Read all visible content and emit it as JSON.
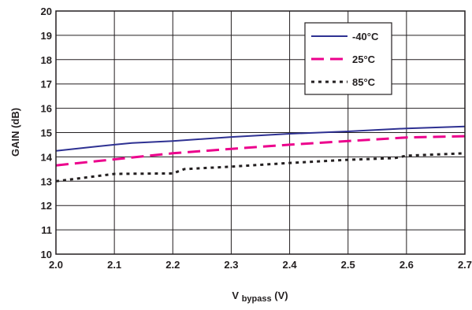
{
  "chart_data": {
    "type": "line",
    "title": "",
    "xlabel_main": "V",
    "xlabel_sub": "bypass",
    "xlabel_unit": " (V)",
    "ylabel": "GAIN (dB)",
    "xlim": [
      2.0,
      2.7
    ],
    "ylim": [
      10,
      20
    ],
    "x_ticks": [
      "2.0",
      "2.1",
      "2.2",
      "2.3",
      "2.4",
      "2.5",
      "2.6",
      "2.7"
    ],
    "y_ticks": [
      "10",
      "11",
      "12",
      "13",
      "14",
      "15",
      "16",
      "17",
      "18",
      "19",
      "20"
    ],
    "grid": true,
    "legend_position": "top-right",
    "series": [
      {
        "name": "-40°C",
        "color": "#2e3192",
        "style": "solid",
        "x": [
          2.0,
          2.05,
          2.1,
          2.13,
          2.2,
          2.3,
          2.4,
          2.5,
          2.6,
          2.7
        ],
        "y": [
          14.25,
          14.38,
          14.5,
          14.57,
          14.65,
          14.82,
          14.95,
          15.05,
          15.17,
          15.25
        ]
      },
      {
        "name": "25°C",
        "color": "#ec008c",
        "style": "dashed",
        "x": [
          2.0,
          2.1,
          2.2,
          2.3,
          2.4,
          2.5,
          2.6,
          2.7
        ],
        "y": [
          13.65,
          13.9,
          14.15,
          14.33,
          14.5,
          14.65,
          14.8,
          14.85
        ]
      },
      {
        "name": "85°C",
        "color": "#231f20",
        "style": "dotted",
        "x": [
          2.0,
          2.05,
          2.1,
          2.2,
          2.22,
          2.3,
          2.4,
          2.5,
          2.58,
          2.6,
          2.7
        ],
        "y": [
          13.0,
          13.15,
          13.3,
          13.32,
          13.5,
          13.6,
          13.75,
          13.88,
          13.95,
          14.05,
          14.15
        ]
      }
    ]
  }
}
